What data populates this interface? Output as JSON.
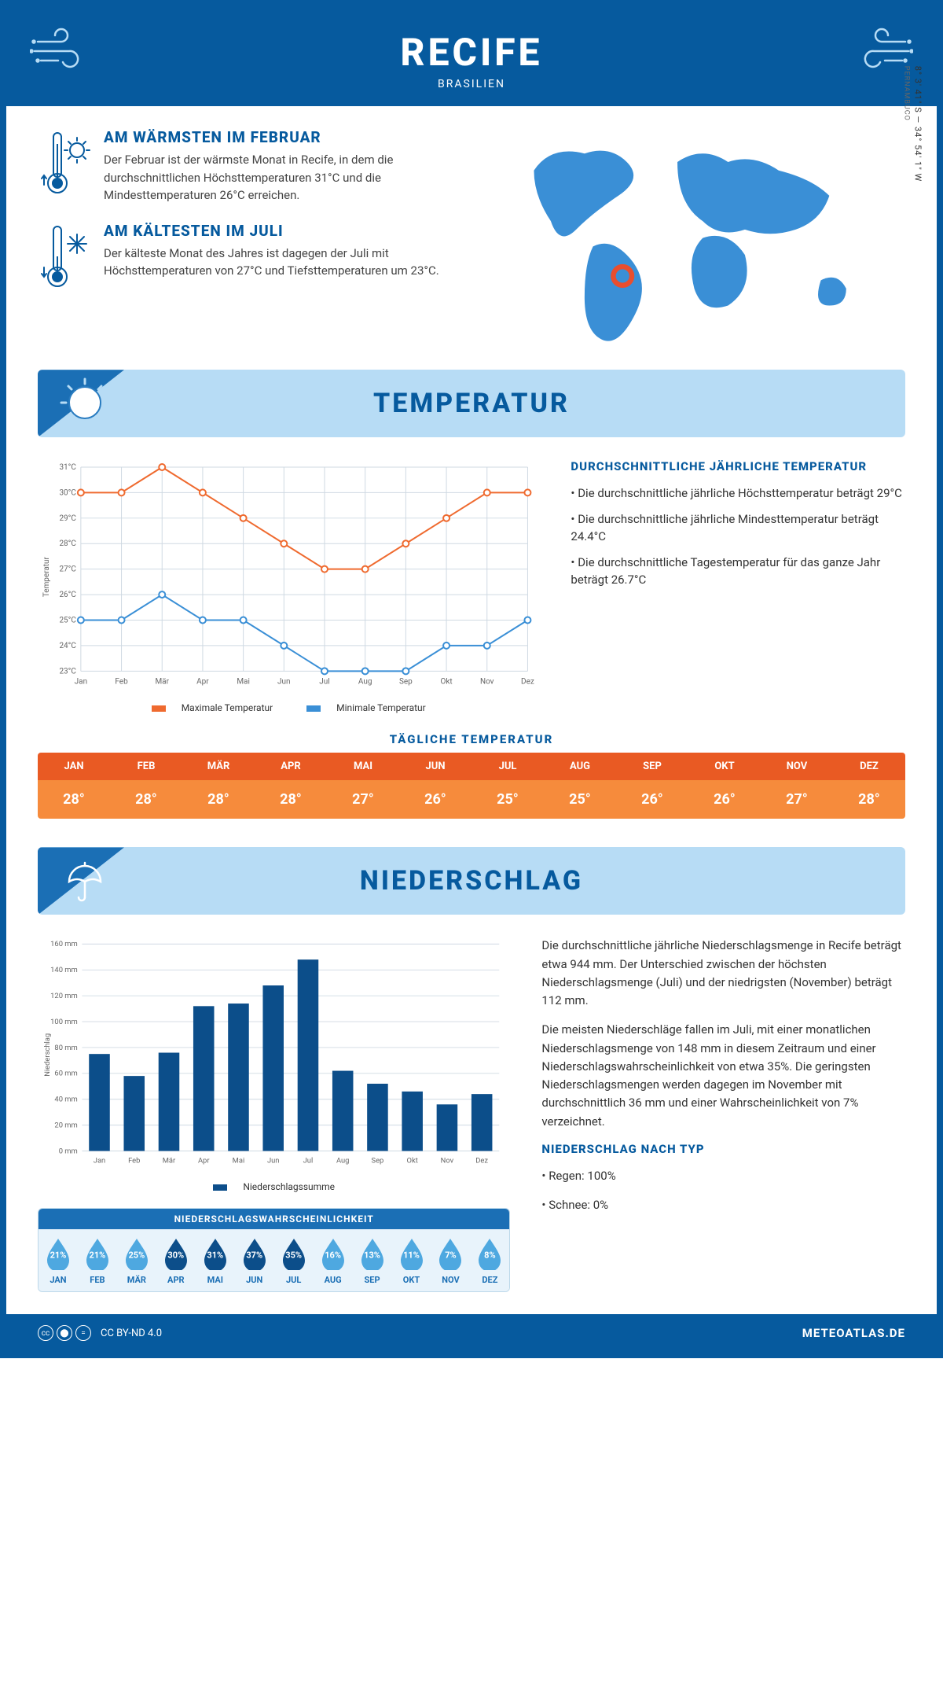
{
  "header": {
    "title": "RECIFE",
    "subtitle": "BRASILIEN"
  },
  "coords": {
    "lat": "8° 3' 41\" S",
    "lon": "34° 54' 1\" W",
    "region": "PERNAMBUCO"
  },
  "warmest": {
    "title": "AM WÄRMSTEN IM FEBRUAR",
    "text": "Der Februar ist der wärmste Monat in Recife, in dem die durchschnittlichen Höchsttemperaturen 31°C und die Mindesttemperaturen 26°C erreichen."
  },
  "coldest": {
    "title": "AM KÄLTESTEN IM JULI",
    "text": "Der kälteste Monat des Jahres ist dagegen der Juli mit Höchsttemperaturen von 27°C und Tiefsttemperaturen um 23°C."
  },
  "months": [
    "Jan",
    "Feb",
    "Mär",
    "Apr",
    "Mai",
    "Jun",
    "Jul",
    "Aug",
    "Sep",
    "Okt",
    "Nov",
    "Dez"
  ],
  "months_upper": [
    "JAN",
    "FEB",
    "MÄR",
    "APR",
    "MAI",
    "JUN",
    "JUL",
    "AUG",
    "SEP",
    "OKT",
    "NOV",
    "DEZ"
  ],
  "temperature": {
    "section_title": "TEMPERATUR",
    "chart": {
      "type": "line",
      "ylabel": "Temperatur",
      "ylim": [
        23,
        31
      ],
      "ytick_step": 1,
      "yticks": [
        "23°C",
        "24°C",
        "25°C",
        "26°C",
        "27°C",
        "28°C",
        "29°C",
        "30°C",
        "31°C"
      ],
      "grid_color": "#cfd9e2",
      "background_color": "#ffffff",
      "series": [
        {
          "name": "Maximale Temperatur",
          "color": "#ef6a2f",
          "values": [
            30,
            30,
            31,
            30,
            29,
            28,
            27,
            27,
            28,
            29,
            30,
            30
          ]
        },
        {
          "name": "Minimale Temperatur",
          "color": "#3a8fd6",
          "values": [
            25,
            25,
            26,
            25,
            25,
            24,
            23,
            23,
            23,
            24,
            24,
            25
          ]
        }
      ],
      "legend": {
        "max": "Maximale Temperatur",
        "min": "Minimale Temperatur"
      }
    },
    "avg_title": "DURCHSCHNITTLICHE JÄHRLICHE TEMPERATUR",
    "bullets": [
      "Die durchschnittliche jährliche Höchsttemperatur beträgt 29°C",
      "Die durchschnittliche jährliche Mindesttemperatur beträgt 24.4°C",
      "Die durchschnittliche Tagestemperatur für das ganze Jahr beträgt 26.7°C"
    ],
    "daily_title": "TÄGLICHE TEMPERATUR",
    "daily_values": [
      "28°",
      "28°",
      "28°",
      "28°",
      "27°",
      "26°",
      "25°",
      "25°",
      "26°",
      "26°",
      "27°",
      "28°"
    ],
    "daily_header_bg": "#e95a23",
    "daily_value_bg": "#f68b3c"
  },
  "precipitation": {
    "section_title": "NIEDERSCHLAG",
    "chart": {
      "type": "bar",
      "ylabel": "Niederschlag",
      "ylim": [
        0,
        160
      ],
      "ytick_step": 20,
      "yticks": [
        "0 mm",
        "20 mm",
        "40 mm",
        "60 mm",
        "80 mm",
        "100 mm",
        "120 mm",
        "140 mm",
        "160 mm"
      ],
      "bar_color": "#0c4e8a",
      "grid_color": "#cfd9e2",
      "values": [
        75,
        58,
        76,
        112,
        114,
        128,
        148,
        62,
        52,
        46,
        36,
        44
      ],
      "legend_label": "Niederschlagssumme"
    },
    "text1": "Die durchschnittliche jährliche Niederschlagsmenge in Recife beträgt etwa 944 mm. Der Unterschied zwischen der höchsten Niederschlagsmenge (Juli) und der niedrigsten (November) beträgt 112 mm.",
    "text2": "Die meisten Niederschläge fallen im Juli, mit einer monatlichen Niederschlagsmenge von 148 mm in diesem Zeitraum und einer Niederschlagswahrscheinlichkeit von etwa 35%. Die geringsten Niederschlagsmengen werden dagegen im November mit durchschnittlich 36 mm und einer Wahrscheinlichkeit von 7% verzeichnet.",
    "type_title": "NIEDERSCHLAG NACH TYP",
    "type_bullets": [
      "Regen: 100%",
      "Schnee: 0%"
    ],
    "prob_title": "NIEDERSCHLAGSWAHRSCHEINLICHKEIT",
    "prob": [
      {
        "v": "21%",
        "dark": false
      },
      {
        "v": "21%",
        "dark": false
      },
      {
        "v": "25%",
        "dark": false
      },
      {
        "v": "30%",
        "dark": true
      },
      {
        "v": "31%",
        "dark": true
      },
      {
        "v": "37%",
        "dark": true
      },
      {
        "v": "35%",
        "dark": true
      },
      {
        "v": "16%",
        "dark": false
      },
      {
        "v": "13%",
        "dark": false
      },
      {
        "v": "11%",
        "dark": false
      },
      {
        "v": "7%",
        "dark": false
      },
      {
        "v": "8%",
        "dark": false
      }
    ],
    "drop_colors": {
      "light": "#4ea8e0",
      "dark": "#0c4e8a"
    }
  },
  "footer": {
    "license": "CC BY-ND 4.0",
    "brand": "METEOATLAS.DE"
  }
}
